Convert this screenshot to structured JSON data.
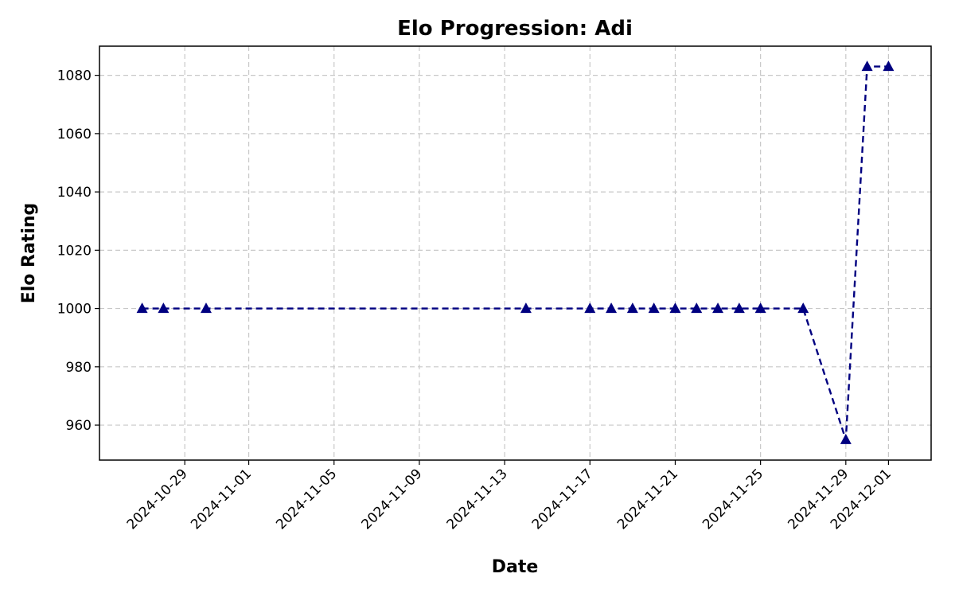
{
  "chart_data": {
    "type": "line",
    "title": "Elo Progression: Adi",
    "xlabel": "Date",
    "ylabel": "Elo Rating",
    "x_ticks": [
      "2024-10-29",
      "2024-11-01",
      "2024-11-05",
      "2024-11-09",
      "2024-11-13",
      "2024-11-17",
      "2024-11-21",
      "2024-11-25",
      "2024-11-29",
      "2024-12-01"
    ],
    "y_ticks": [
      960,
      980,
      1000,
      1020,
      1040,
      1060,
      1080
    ],
    "xlim": [
      "2024-10-25",
      "2024-12-03"
    ],
    "ylim": [
      948,
      1090
    ],
    "grid": true,
    "line_style": "dashed",
    "marker": "triangle",
    "color": "#000080",
    "series": [
      {
        "points": [
          {
            "x": "2024-10-27",
            "y": 1000
          },
          {
            "x": "2024-10-28",
            "y": 1000
          },
          {
            "x": "2024-10-30",
            "y": 1000
          },
          {
            "x": "2024-11-14",
            "y": 1000
          },
          {
            "x": "2024-11-17",
            "y": 1000
          },
          {
            "x": "2024-11-18",
            "y": 1000
          },
          {
            "x": "2024-11-19",
            "y": 1000
          },
          {
            "x": "2024-11-20",
            "y": 1000
          },
          {
            "x": "2024-11-21",
            "y": 1000
          },
          {
            "x": "2024-11-22",
            "y": 1000
          },
          {
            "x": "2024-11-23",
            "y": 1000
          },
          {
            "x": "2024-11-24",
            "y": 1000
          },
          {
            "x": "2024-11-25",
            "y": 1000
          },
          {
            "x": "2024-11-27",
            "y": 1000
          },
          {
            "x": "2024-11-29",
            "y": 955
          },
          {
            "x": "2024-11-30",
            "y": 1083
          },
          {
            "x": "2024-12-01",
            "y": 1083
          }
        ]
      }
    ]
  }
}
